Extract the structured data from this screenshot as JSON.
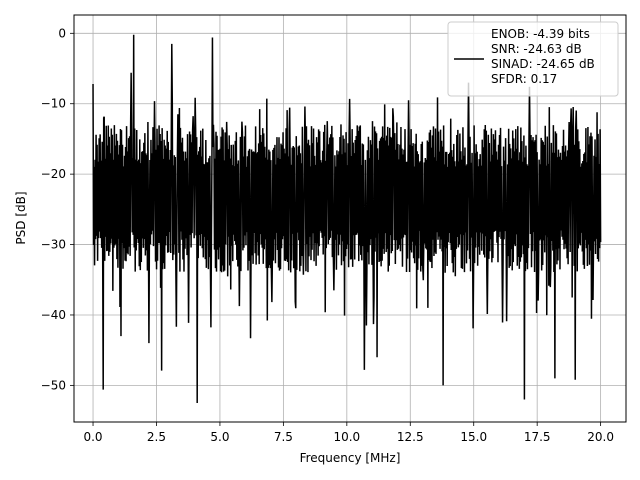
{
  "chart_data": {
    "type": "line",
    "title": "",
    "xlabel": "Frequency [MHz]",
    "ylabel": "PSD [dB]",
    "xlim": [
      -0.75,
      21.0
    ],
    "ylim": [
      -55.2,
      2.6
    ],
    "xticks": [
      0.0,
      2.5,
      5.0,
      7.5,
      10.0,
      12.5,
      15.0,
      17.5,
      20.0
    ],
    "xtick_labels": [
      "0.0",
      "2.5",
      "5.0",
      "7.5",
      "10.0",
      "12.5",
      "15.0",
      "17.5",
      "20.0"
    ],
    "yticks": [
      0,
      -10,
      -20,
      -30,
      -40,
      -50
    ],
    "ytick_labels": [
      "0",
      "−10",
      "−20",
      "−30",
      "−40",
      "−50"
    ],
    "grid": true,
    "legend_position": "top-right",
    "legend_entries": [
      "ENOB: -4.39 bits",
      "SNR: -24.63 dB",
      "SINAD: -24.65 dB",
      "SFDR: 0.17"
    ],
    "line_color": "#000000",
    "series": [
      {
        "x_start": 0.0,
        "x_end": 20.0,
        "points": 1000,
        "typical_range_db": [
          -34,
          -13
        ],
        "mean_db": -22,
        "peaks": [
          {
            "x": 1.6,
            "y": -0.2
          },
          {
            "x": 3.1,
            "y": -1.5
          },
          {
            "x": 4.7,
            "y": -0.6
          },
          {
            "x": 1.5,
            "y": -5.6
          },
          {
            "x": 0.0,
            "y": -7.2
          },
          {
            "x": 14.8,
            "y": -7.0
          },
          {
            "x": 17.2,
            "y": -7.6
          }
        ],
        "troughs": [
          {
            "x": 0.4,
            "y": -50.6
          },
          {
            "x": 2.7,
            "y": -47.9
          },
          {
            "x": 4.1,
            "y": -52.5
          },
          {
            "x": 10.7,
            "y": -47.8
          },
          {
            "x": 13.8,
            "y": -50.0
          },
          {
            "x": 17.0,
            "y": -52.0
          },
          {
            "x": 18.2,
            "y": -49.0
          },
          {
            "x": 19.0,
            "y": -49.2
          },
          {
            "x": 1.1,
            "y": -43.0
          },
          {
            "x": 2.2,
            "y": -44.0
          },
          {
            "x": 6.2,
            "y": -43.3
          },
          {
            "x": 11.2,
            "y": -46.0
          }
        ]
      }
    ]
  }
}
